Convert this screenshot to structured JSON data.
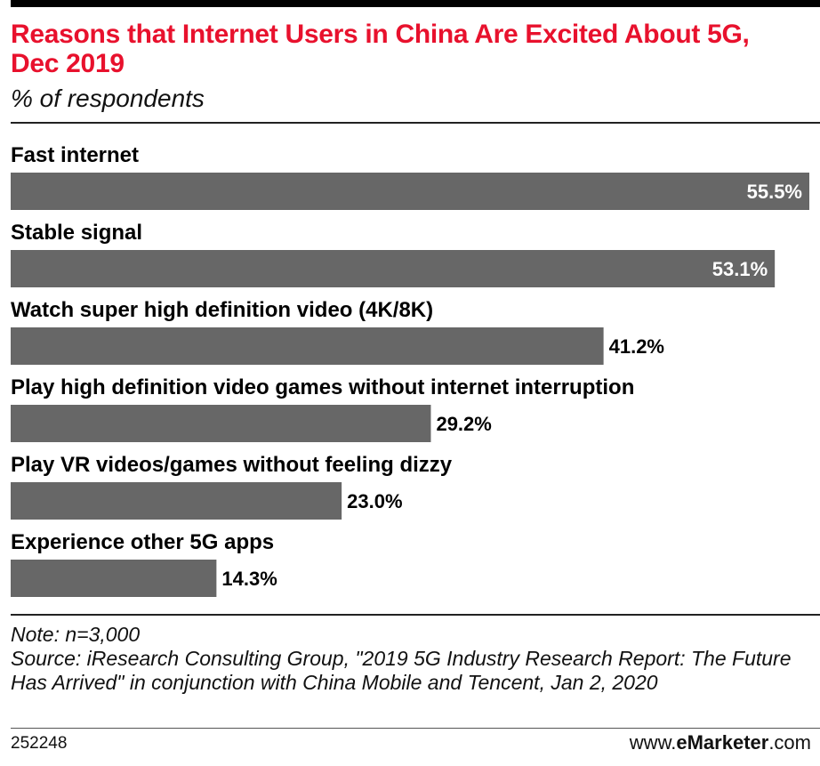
{
  "header": {
    "title": "Reasons that Internet Users in China Are Excited About 5G, Dec 2019",
    "subtitle": "% of respondents"
  },
  "chart_data": {
    "type": "bar",
    "orientation": "horizontal",
    "categories": [
      "Fast internet",
      "Stable signal",
      "Watch super high definition video (4K/8K)",
      "Play high definition video games without internet interruption",
      "Play VR videos/games without feeling dizzy",
      "Experience other 5G apps"
    ],
    "values": [
      55.5,
      53.1,
      41.2,
      29.2,
      23.0,
      14.3
    ],
    "value_labels": [
      "55.5%",
      "53.1%",
      "41.2%",
      "29.2%",
      "23.0%",
      "14.3%"
    ],
    "xlim": [
      0,
      55.5
    ],
    "bar_color": "#676767",
    "grid": false,
    "legend": "none"
  },
  "footer": {
    "note": "Note: n=3,000",
    "source": "Source: iResearch Consulting Group, \"2019 5G Industry Research Report: The Future Has Arrived\" in conjunction with China Mobile and Tencent, Jan 2, 2020",
    "chart_id": "252248",
    "brand_prefix": "www.",
    "brand_name": "eMarketer",
    "brand_suffix": ".com"
  },
  "colors": {
    "title": "#e8112d",
    "bar": "#676767"
  }
}
